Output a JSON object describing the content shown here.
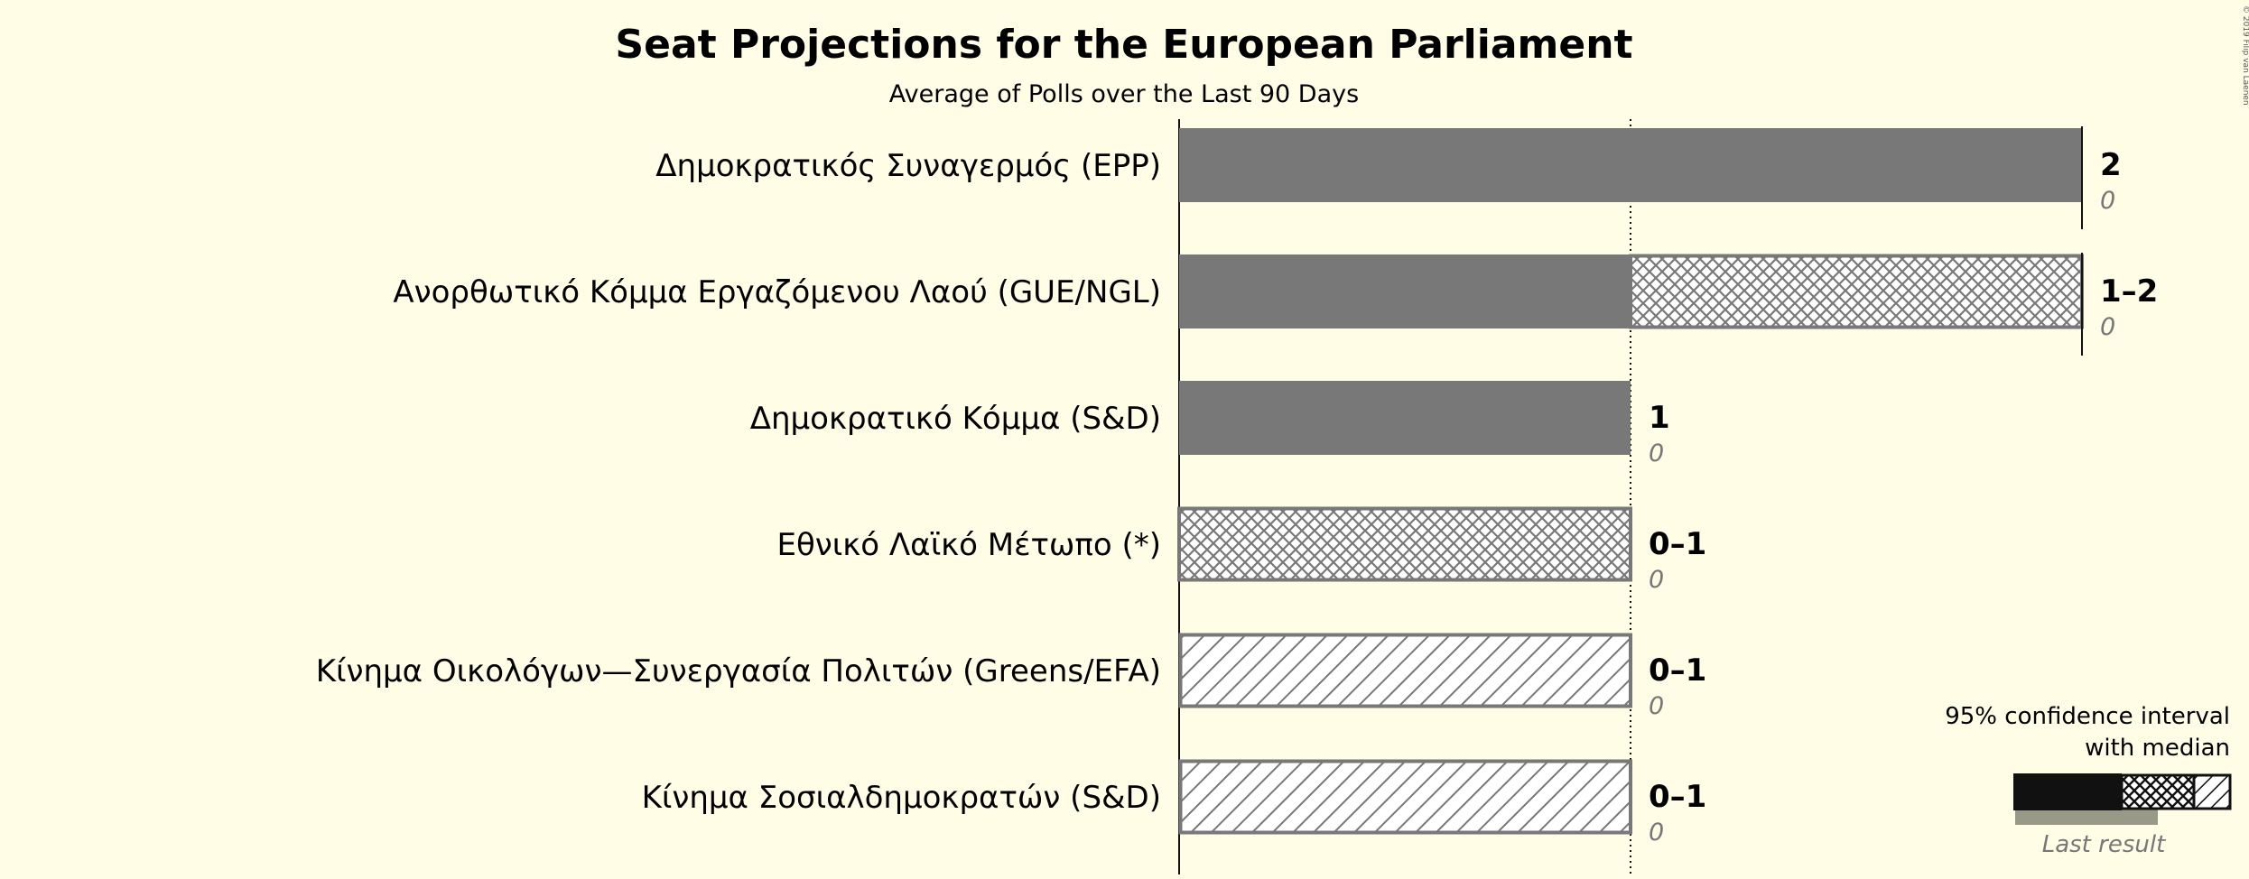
{
  "chart_data": {
    "type": "bar",
    "title": "Seat Projections for the European Parliament",
    "subtitle": "Average of Polls over the Last 90 Days",
    "copyright": "© 2019 Filip van Laenen",
    "xlim": [
      0,
      2
    ],
    "majority_line": 1,
    "series": [
      {
        "name": "Δημοκρατικός Συναγερμός (EPP)",
        "low": 2,
        "median": 2,
        "high": 2,
        "range_label": "2",
        "last_result": 0,
        "last_label": "0"
      },
      {
        "name": "Ανορθωτικό Κόμμα Εργαζόμενου Λαού (GUE/NGL)",
        "low": 1,
        "median": 2,
        "high": 2,
        "range_label": "1–2",
        "last_result": 0,
        "last_label": "0"
      },
      {
        "name": "Δημοκρατικό Κόμμα (S&D)",
        "low": 1,
        "median": 1,
        "high": 1,
        "range_label": "1",
        "last_result": 0,
        "last_label": "0"
      },
      {
        "name": "Εθνικό Λαϊκό Μέτωπο (*)",
        "low": 0,
        "median": 1,
        "high": 1,
        "range_label": "0–1",
        "last_result": 0,
        "last_label": "0"
      },
      {
        "name": "Κίνημα Οικολόγων—Συνεργασία Πολιτών (Greens/EFA)",
        "low": 0,
        "median": 0,
        "high": 1,
        "range_label": "0–1",
        "last_result": 0,
        "last_label": "0"
      },
      {
        "name": "Κίνημα Σοσιαλδημοκρατών (S&D)",
        "low": 0,
        "median": 0,
        "high": 1,
        "range_label": "0–1",
        "last_result": 0,
        "last_label": "0"
      }
    ],
    "legend": {
      "line1": "95% confidence interval",
      "line2": "with median",
      "last": "Last result",
      "placement": "bottom-right"
    },
    "colors": {
      "background": "#fffde6",
      "bar": "#787878",
      "legend_dark": "#111111",
      "last_result": "#999988"
    }
  }
}
